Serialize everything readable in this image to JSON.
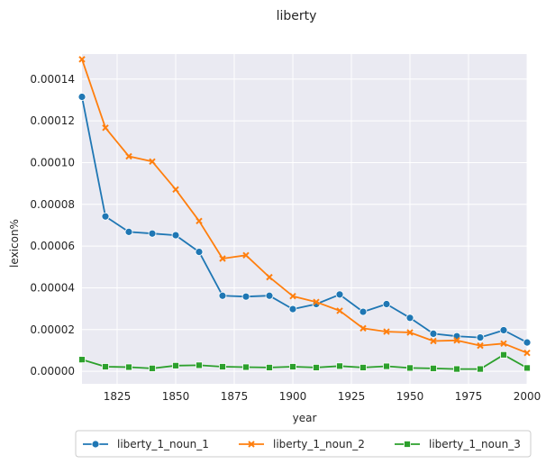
{
  "chart_data": {
    "type": "line",
    "title": "liberty",
    "xlabel": "year",
    "ylabel": "lexicon%",
    "xlim": [
      1810,
      2000
    ],
    "ylim": [
      -6e-06,
      0.000152
    ],
    "xticks": [
      1825,
      1850,
      1875,
      1900,
      1925,
      1950,
      1975,
      2000
    ],
    "xtick_labels": [
      "1825",
      "1850",
      "1875",
      "1900",
      "1925",
      "1950",
      "1975",
      "2000"
    ],
    "yticks": [
      0,
      2e-05,
      4e-05,
      6e-05,
      8e-05,
      0.0001,
      0.00012,
      0.00014
    ],
    "ytick_labels": [
      "0.00000",
      "0.00002",
      "0.00004",
      "0.00006",
      "0.00008",
      "0.00010",
      "0.00012",
      "0.00014"
    ],
    "grid": true,
    "legend_position": "bottom-center",
    "x": [
      1810,
      1820,
      1830,
      1840,
      1850,
      1860,
      1870,
      1880,
      1890,
      1900,
      1910,
      1920,
      1930,
      1940,
      1950,
      1960,
      1970,
      1980,
      1990,
      2000
    ],
    "series": [
      {
        "name": "liberty_1_noun_1",
        "color": "#1f77b4",
        "marker": "circle",
        "values": [
          0.0001315,
          7.42e-05,
          6.68e-05,
          6.6e-05,
          6.52e-05,
          5.72e-05,
          3.62e-05,
          3.58e-05,
          3.62e-05,
          2.98e-05,
          3.22e-05,
          3.68e-05,
          2.85e-05,
          3.22e-05,
          2.56e-05,
          1.8e-05,
          1.68e-05,
          1.62e-05,
          1.97e-05,
          1.38e-05
        ]
      },
      {
        "name": "liberty_1_noun_2",
        "color": "#ff7f0e",
        "marker": "x",
        "values": [
          0.0001495,
          0.0001167,
          0.000103,
          0.0001005,
          8.71e-05,
          7.2e-05,
          5.4e-05,
          5.56e-05,
          4.51e-05,
          3.6e-05,
          3.32e-05,
          2.9e-05,
          2.06e-05,
          1.9e-05,
          1.86e-05,
          1.45e-05,
          1.48e-05,
          1.23e-05,
          1.33e-05,
          8.8e-06
        ]
      },
      {
        "name": "liberty_1_noun_3",
        "color": "#2ca02c",
        "marker": "square",
        "values": [
          5.6e-06,
          2.2e-06,
          2e-06,
          1.4e-06,
          2.7e-06,
          2.9e-06,
          2.2e-06,
          2e-06,
          1.8e-06,
          2.2e-06,
          1.8e-06,
          2.5e-06,
          1.8e-06,
          2.4e-06,
          1.6e-06,
          1.4e-06,
          1.1e-06,
          1.1e-06,
          7.9e-06,
          1.6e-06
        ]
      }
    ]
  }
}
